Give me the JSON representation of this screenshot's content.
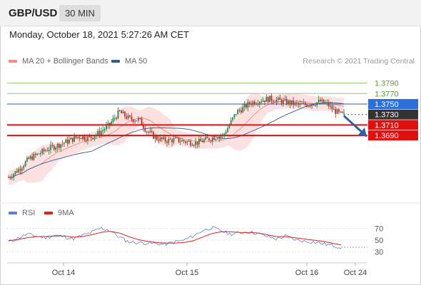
{
  "header": {
    "pair": "GBP/USD",
    "timeframe": "30 MIN"
  },
  "datetime": "Monday, October 18, 2021 5:27:26 AM CET",
  "legend_price": [
    {
      "label": "MA 20 + Bollinger Bands",
      "color": "#f28b82"
    },
    {
      "label": "MA 50",
      "color": "#2e5c9a"
    }
  ],
  "credit": "Research © 2021 Trading Central",
  "legend_rsi": [
    {
      "label": "RSI",
      "color": "#5b7fd6"
    },
    {
      "label": "9MA",
      "color": "#e0201b"
    }
  ],
  "colors": {
    "up_candle": "#1c7a3a",
    "down_candle": "#d01a1a",
    "bollinger": "#fbdcdc",
    "ma20": "#f28b82",
    "ma50": "#2e5c9a",
    "target_line": "#8ec96b",
    "pivot_line": "#2f5fa8",
    "support_line": "#e01010",
    "arrow": "#2f5fa8",
    "rsi": "#5b7fd6",
    "rsi_ma": "#e0201b"
  },
  "chart_data": [
    {
      "type": "candlestick",
      "title": "GBP/USD 30 MIN",
      "x_ticks": [
        "Oct 14",
        "Oct 15",
        "Oct 16",
        "Oct 24"
      ],
      "ylim": [
        1.3565,
        1.3818
      ],
      "price_levels": [
        {
          "label": "1.3790",
          "value": 1.379,
          "kind": "target"
        },
        {
          "label": "1.3770",
          "value": 1.377,
          "kind": "target"
        },
        {
          "label": "1.3750",
          "value": 1.375,
          "kind": "pivot"
        },
        {
          "label": "1.3730",
          "value": 1.373,
          "kind": "last"
        },
        {
          "label": "1.3710",
          "value": 1.371,
          "kind": "support"
        },
        {
          "label": "1.3690",
          "value": 1.369,
          "kind": "support"
        }
      ],
      "close_path": [
        [
          0,
          1.361
        ],
        [
          3,
          1.3625
        ],
        [
          6,
          1.3645
        ],
        [
          9,
          1.3655
        ],
        [
          12,
          1.3665
        ],
        [
          15,
          1.3672
        ],
        [
          18,
          1.368
        ],
        [
          21,
          1.3688
        ],
        [
          24,
          1.3685
        ],
        [
          27,
          1.3695
        ],
        [
          30,
          1.371
        ],
        [
          33,
          1.3735
        ],
        [
          36,
          1.3722
        ],
        [
          39,
          1.372
        ],
        [
          41,
          1.37
        ],
        [
          44,
          1.3685
        ],
        [
          47,
          1.368
        ],
        [
          50,
          1.3682
        ],
        [
          53,
          1.3678
        ],
        [
          56,
          1.3676
        ],
        [
          59,
          1.3682
        ],
        [
          62,
          1.3688
        ],
        [
          64,
          1.369
        ],
        [
          66,
          1.3712
        ],
        [
          68,
          1.3735
        ],
        [
          70,
          1.3742
        ],
        [
          72,
          1.3752
        ],
        [
          75,
          1.3757
        ],
        [
          78,
          1.376
        ],
        [
          81,
          1.3756
        ],
        [
          84,
          1.3752
        ],
        [
          87,
          1.3748
        ],
        [
          90,
          1.375
        ],
        [
          93,
          1.3755
        ],
        [
          95,
          1.375
        ],
        [
          97,
          1.3738
        ],
        [
          99,
          1.373
        ]
      ],
      "forecast": {
        "from": 1.373,
        "to": 1.369
      }
    },
    {
      "type": "line",
      "title": "RSI",
      "ylim": [
        20,
        80
      ],
      "y_ticks": [
        "70",
        "50",
        "30"
      ],
      "x_ticks": [
        "Oct 14",
        "Oct 15",
        "Oct 16",
        "Oct 24"
      ],
      "series": [
        {
          "name": "RSI",
          "values": [
            47,
            53,
            60,
            57,
            54,
            58,
            56,
            52,
            58,
            63,
            70,
            66,
            55,
            47,
            46,
            45,
            44,
            43,
            47,
            50,
            57,
            66,
            71,
            66,
            60,
            62,
            64,
            61,
            56,
            52,
            57,
            51,
            48,
            47,
            44,
            41,
            38
          ]
        },
        {
          "name": "9MA",
          "values": [
            49,
            51,
            54,
            56,
            56,
            57,
            57,
            55,
            56,
            59,
            63,
            65,
            62,
            56,
            51,
            48,
            46,
            45,
            45,
            46,
            49,
            55,
            61,
            64,
            64,
            63,
            63,
            62,
            59,
            56,
            56,
            54,
            52,
            50,
            48,
            45,
            42
          ]
        }
      ]
    }
  ]
}
